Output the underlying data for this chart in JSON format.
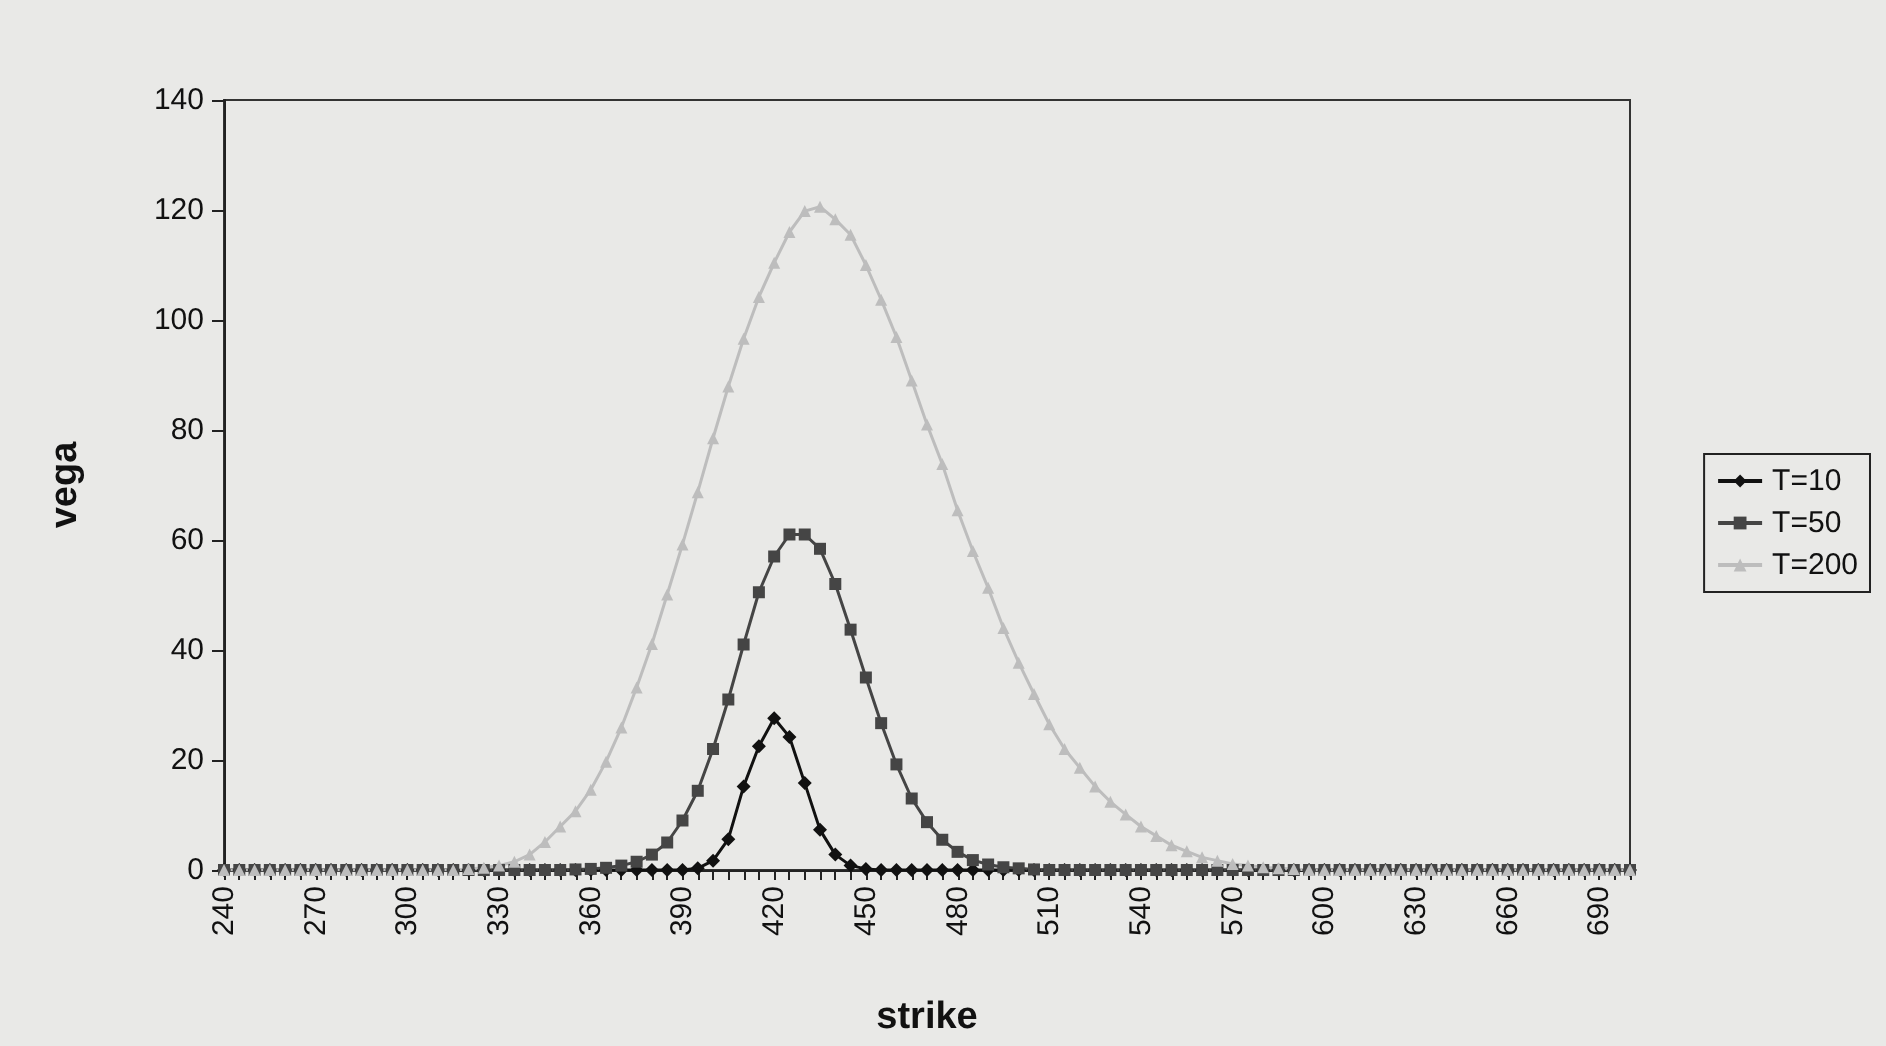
{
  "chart_data": {
    "type": "line",
    "xlabel": "strike",
    "ylabel": "vega",
    "categories": [
      "240",
      null,
      null,
      null,
      null,
      null,
      "270",
      null,
      null,
      null,
      null,
      null,
      "300",
      null,
      null,
      null,
      null,
      null,
      "330",
      null,
      null,
      null,
      null,
      null,
      "360",
      null,
      null,
      null,
      null,
      null,
      "390",
      null,
      null,
      null,
      null,
      null,
      "420",
      null,
      null,
      null,
      null,
      null,
      "450",
      null,
      null,
      null,
      null,
      null,
      "480",
      null,
      null,
      null,
      null,
      null,
      "510",
      null,
      null,
      null,
      null,
      null,
      "540",
      null,
      null,
      null,
      null,
      null,
      "570",
      null,
      null,
      null,
      null,
      null,
      "600",
      null,
      null,
      null,
      null,
      null,
      "630",
      null,
      null,
      null,
      null,
      null,
      "660",
      null,
      null,
      null,
      null,
      null,
      "690",
      null,
      null
    ],
    "series": [
      {
        "name": "T=10",
        "color": "#111111",
        "marker": "diamond",
        "values": [
          0,
          0,
          0,
          0,
          0,
          0,
          0,
          0,
          0,
          0,
          0,
          0,
          0,
          0,
          0,
          0,
          0,
          0,
          0,
          0,
          0,
          0,
          0,
          0,
          0,
          0,
          0,
          0,
          0,
          0,
          0,
          0.3,
          1.7,
          5.6,
          15.2,
          22.5,
          27.6,
          24.2,
          15.8,
          7.3,
          2.8,
          0.8,
          0.2,
          0,
          0,
          0,
          0,
          0,
          0,
          0,
          0,
          0,
          0,
          0,
          0,
          0,
          0,
          0,
          0,
          0,
          0,
          0,
          0,
          0,
          0,
          0,
          0,
          0,
          0,
          0,
          0,
          0,
          0,
          0,
          0,
          0,
          0,
          0,
          0,
          0,
          0,
          0,
          0,
          0,
          0,
          0,
          0,
          0,
          0,
          0,
          0,
          0,
          0
        ]
      },
      {
        "name": "T=50",
        "color": "#454545",
        "marker": "square",
        "values": [
          0,
          0,
          0,
          0,
          0,
          0,
          0,
          0,
          0,
          0,
          0,
          0,
          0,
          0,
          0,
          0,
          0,
          0,
          0,
          0,
          0,
          0,
          0,
          0.1,
          0.2,
          0.4,
          0.8,
          1.5,
          2.8,
          5,
          9,
          14.4,
          22,
          31,
          41,
          50.5,
          57,
          61,
          61,
          58.4,
          52,
          43.7,
          35,
          26.7,
          19.2,
          13,
          8.7,
          5.5,
          3.3,
          1.8,
          1,
          0.5,
          0.3,
          0.1,
          0,
          0,
          0,
          0,
          0,
          0,
          0,
          0,
          0,
          0,
          0,
          0,
          0,
          0,
          0,
          0,
          0,
          0,
          0,
          0,
          0,
          0,
          0,
          0,
          0,
          0,
          0,
          0,
          0,
          0,
          0,
          0,
          0,
          0,
          0,
          0,
          0,
          0,
          0
        ]
      },
      {
        "name": "T=200",
        "color": "#bdbdbd",
        "marker": "triangle",
        "values": [
          0,
          0,
          0,
          0,
          0,
          0,
          0,
          0,
          0,
          0,
          0,
          0,
          0,
          0,
          0,
          0,
          0.2,
          0.4,
          0.8,
          1.5,
          2.8,
          5.1,
          7.9,
          10.7,
          14.6,
          19.7,
          25.9,
          33.2,
          41.1,
          50.1,
          59.2,
          68.7,
          78.5,
          87.9,
          96.6,
          104.2,
          110.4,
          116,
          119.8,
          120.6,
          118.3,
          115.5,
          110,
          103.7,
          96.9,
          89,
          81,
          73.8,
          65.4,
          58,
          51.3,
          44,
          37.7,
          32,
          26.5,
          22,
          18.6,
          15.2,
          12.4,
          10.1,
          7.9,
          6.2,
          4.5,
          3.4,
          2.3,
          1.7,
          1.1,
          0.8,
          0.5,
          0.3,
          0.2,
          0,
          0,
          0,
          0,
          0,
          0,
          0,
          0,
          0,
          0,
          0,
          0,
          0,
          0,
          0,
          0,
          0,
          0,
          0,
          0,
          0,
          0
        ]
      }
    ],
    "ylim": [
      0,
      140
    ],
    "yticks": [
      0,
      20,
      40,
      60,
      80,
      100,
      120,
      140
    ],
    "grid": false,
    "legend": "right"
  }
}
